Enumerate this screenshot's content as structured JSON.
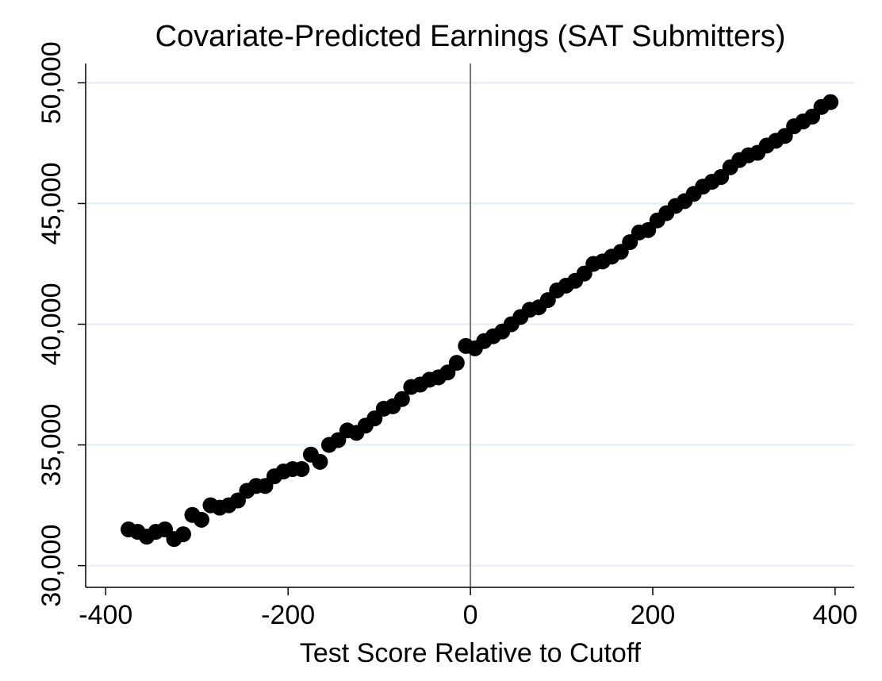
{
  "chart_data": {
    "type": "scatter",
    "title": "Covariate-Predicted Earnings (SAT Submitters)",
    "x_label": "Test Score Relative to Cutoff",
    "x": [
      -375,
      -365,
      -355,
      -345,
      -335,
      -325,
      -315,
      -305,
      -295,
      -285,
      -275,
      -265,
      -255,
      -245,
      -235,
      -225,
      -215,
      -205,
      -195,
      -185,
      -175,
      -165,
      -155,
      -145,
      -135,
      -125,
      -115,
      -105,
      -95,
      -85,
      -75,
      -65,
      -55,
      -45,
      -35,
      -25,
      -15,
      -5,
      5,
      15,
      25,
      35,
      45,
      55,
      65,
      75,
      85,
      95,
      105,
      115,
      125,
      135,
      145,
      155,
      165,
      175,
      185,
      195,
      205,
      215,
      225,
      235,
      245,
      255,
      265,
      275,
      285,
      295,
      305,
      315,
      325,
      335,
      345,
      355,
      365,
      375,
      385,
      395
    ],
    "values": [
      31500,
      31400,
      31200,
      31400,
      31500,
      31100,
      31300,
      32100,
      31900,
      32500,
      32400,
      32500,
      32700,
      33100,
      33300,
      33300,
      33700,
      33900,
      34000,
      34000,
      34600,
      34300,
      35000,
      35200,
      35600,
      35500,
      35800,
      36100,
      36500,
      36600,
      36900,
      37400,
      37500,
      37700,
      37800,
      38000,
      38400,
      39100,
      39000,
      39300,
      39500,
      39700,
      40000,
      40300,
      40600,
      40700,
      41000,
      41400,
      41600,
      41800,
      42100,
      42500,
      42600,
      42800,
      43000,
      43400,
      43800,
      43900,
      44300,
      44600,
      44900,
      45100,
      45400,
      45700,
      45900,
      46100,
      46500,
      46800,
      47000,
      47100,
      47400,
      47600,
      47800,
      48200,
      48400,
      48600,
      49000,
      49200
    ],
    "color": "#000000",
    "xlim": [
      -422,
      421
    ],
    "ylim": [
      29100,
      50800
    ],
    "xticks": [
      -400,
      -200,
      0,
      200,
      400
    ],
    "yticks": [
      {
        "value": 30000,
        "label": "30,000"
      },
      {
        "value": 35000,
        "label": "35,000"
      },
      {
        "value": 40000,
        "label": "40,000"
      },
      {
        "value": 45000,
        "label": "45,000"
      },
      {
        "value": 50000,
        "label": "50,000"
      }
    ],
    "xline": 0,
    "grid": true,
    "grid_color": "#e3eef0"
  }
}
